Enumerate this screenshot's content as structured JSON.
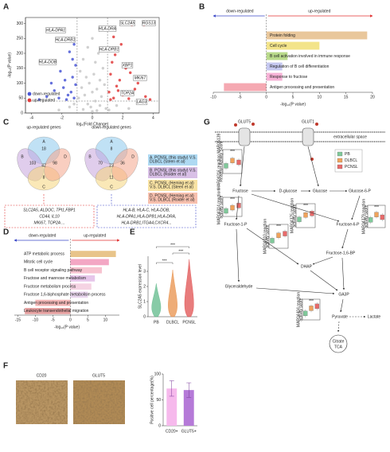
{
  "chart_data": [
    {
      "panel": "A",
      "type": "scatter",
      "x_label": "log₂(Fold Change)",
      "y_label": "-log₁₀(P value)",
      "xlim": [
        -4.4,
        4.4
      ],
      "xticks": [
        -4,
        -2,
        0,
        2,
        4
      ],
      "ylim": [
        0,
        320
      ],
      "yticks": [
        0,
        50,
        100,
        150,
        200,
        250,
        300
      ],
      "vlines": [
        -1,
        1
      ],
      "hline": 40,
      "legend": "lower left",
      "series": [
        {
          "color": "#c8c8c8",
          "x": [
            0,
            -0.3,
            0.4,
            -0.6,
            0.2,
            0.7,
            -0.8,
            0.1,
            -0.4,
            0.5,
            -0.2,
            0.8,
            -0.7,
            0.3,
            0,
            -0.5,
            0.6,
            -0.9,
            0.2,
            -0.3,
            0.5,
            -0.1,
            0.9,
            -0.6,
            0.3,
            -1.5,
            1.6,
            -2.2,
            2.4,
            1.1,
            -1.2,
            0
          ],
          "values": [
            250,
            220,
            200,
            180,
            170,
            150,
            140,
            130,
            120,
            110,
            100,
            95,
            85,
            80,
            70,
            60,
            55,
            50,
            40,
            30,
            25,
            20,
            15,
            12,
            8,
            20,
            25,
            10,
            15,
            10,
            30,
            5
          ]
        },
        {
          "name": "down-regulated",
          "color": "#4a57d6",
          "x": [
            -1.2,
            -1.5,
            -1.3,
            -2.1,
            -1.8,
            -1.1,
            -2.5,
            -1.4,
            -3.0,
            -1.6,
            -2.2,
            -1.2,
            -3.5,
            -1.9,
            -1.3,
            -2.7,
            -1.1,
            -1.7
          ],
          "values": [
            230,
            205,
            180,
            140,
            110,
            95,
            75,
            70,
            55,
            60,
            50,
            50,
            45,
            85,
            120,
            100,
            160,
            45
          ]
        },
        {
          "name": "up-regulated",
          "color": "#e03b3b",
          "x": [
            2.6,
            3.4,
            1.4,
            1.9,
            1.5,
            1.3,
            2.2,
            2.5,
            1.2,
            1.8,
            3.0,
            1.6,
            2.8,
            1.1,
            2.0,
            3.5,
            1.4,
            2.4,
            1.2,
            3.8,
            1.7
          ],
          "values": [
            295,
            295,
            255,
            230,
            195,
            170,
            150,
            135,
            130,
            110,
            100,
            90,
            80,
            70,
            60,
            55,
            50,
            48,
            45,
            45,
            75
          ]
        }
      ],
      "annotations": [
        "HLA-DPA1",
        "HLA-DRB1",
        "HLA-DRA",
        "HLA-DPB1",
        "HLA-DOB",
        "SLC2A5",
        "RGS13",
        "XBP1",
        "MKI67",
        "TOP2A",
        "LAG3"
      ]
    },
    {
      "panel": "B",
      "type": "bar",
      "orientation": "horizontal",
      "header_left": "down-regulated",
      "header_right": "up-regulated",
      "categories": [
        "Protein folding",
        "Cell cycle",
        "B cell activation involved in immune response",
        "Regulation of B cell differentiation",
        "Response to fructose",
        "Antigen processing and presentation"
      ],
      "values": [
        19,
        10,
        4,
        3,
        3,
        -8
      ],
      "colors": [
        "#e9c79b",
        "#f3e48a",
        "#b9da8b",
        "#c5c8f0",
        "#f6b2d6",
        "#f5a9b2"
      ],
      "xlim": [
        -10,
        20
      ],
      "xticks": [
        -10,
        -5,
        0,
        5,
        10,
        15,
        20
      ],
      "x_label": "-log₁₀(P value)"
    },
    {
      "panel": "D",
      "type": "bar",
      "orientation": "horizontal",
      "header_left": "down-regulated",
      "header_right": "up-regulated",
      "categories": [
        "ATP metabolic process",
        "Mitotic cell cycle",
        "B cell receptor signaling pathway",
        "Fructose and mannose metabolism",
        "Fructose metabolism process",
        "Fructose 1,6-biphosphate metabolism process",
        "Antigen processing and presentation",
        "Leukocyte transendothelial migration"
      ],
      "values": [
        13,
        11,
        9,
        7,
        6,
        5,
        -10,
        -13
      ],
      "colors": [
        "#e8c48a",
        "#f3a7c4",
        "#f7c3d0",
        "#e6c6ea",
        "#f5d3e3",
        "#ead7ef",
        "#f2b5b5",
        "#e5a0a0"
      ],
      "xlim": [
        -16,
        14
      ],
      "xticks": [
        -15,
        -10,
        -5,
        0,
        5,
        10
      ],
      "x_label": "-log₁₀(P value)"
    },
    {
      "panel": "E",
      "type": "violin",
      "categories": [
        "PB",
        "DLBCL",
        "PCNSL"
      ],
      "values": [
        2.2,
        3.1,
        3.8
      ],
      "colors": [
        "#5fb98a",
        "#e8904a",
        "#e05050"
      ],
      "ylim": [
        0,
        4
      ],
      "yticks": [
        0,
        1,
        2,
        3
      ],
      "y_label": "SLC2A5 expression level",
      "annotations": [
        "***",
        "***",
        "***"
      ]
    },
    {
      "type": "bar",
      "categories": [
        "CD20+",
        "GLUT5+"
      ],
      "values": [
        72,
        69
      ],
      "errors": [
        15,
        14
      ],
      "colors": [
        "#f6b9ec",
        "#b57ad8"
      ],
      "ylim": [
        0,
        100
      ],
      "yticks": [
        0,
        50,
        100
      ],
      "y_label": "Positive cell percentage(%)"
    },
    {
      "type": "box",
      "y_label": [
        "MAR04316 reaction MAR05139",
        "Reaction Activity Score"
      ],
      "values": [
        0.09,
        0.12,
        0.11
      ],
      "ylim": [
        0.06,
        0.16
      ],
      "annotation": "***"
    },
    {
      "type": "box",
      "y_label": [
        "MAR04314 reaction",
        "activity score"
      ],
      "values": [
        0.05,
        0.08,
        0.1
      ],
      "ylim": [
        0.02,
        0.14
      ],
      "annotation": "***"
    },
    {
      "type": "box",
      "y_label": [
        "MAR04310 reaction",
        "activity score"
      ],
      "values": [
        0.07,
        0.1,
        0.11
      ],
      "ylim": [
        0.04,
        0.14
      ],
      "annotation": "***"
    },
    {
      "type": "box",
      "y_label": [
        "MAR04375 reaction",
        "activity score"
      ],
      "values": [
        0.08,
        0.11,
        0.12
      ],
      "ylim": [
        0.04,
        0.16
      ],
      "annotation": "***"
    },
    {
      "type": "box",
      "y_label": [
        "MAR04379 reaction",
        "activity score"
      ],
      "values": [
        0.1,
        0.14,
        0.12
      ],
      "ylim": [
        0.06,
        0.18
      ],
      "annotation": "***"
    },
    {
      "type": "box",
      "y_label": [
        "MAR04404 reaction",
        "activity score"
      ],
      "values": [
        0.06,
        0.11,
        0.13
      ],
      "ylim": [
        0.02,
        0.16
      ],
      "annotation": "***"
    }
  ],
  "venn": {
    "panel": "C",
    "titles": [
      "up-regulated genes",
      "down-regulated genes"
    ],
    "sets": [
      {
        "label": "A",
        "color": "#8cc9ec"
      },
      {
        "label": "B",
        "color": "#c7a4dc"
      },
      {
        "label": "C",
        "color": "#f5d57c"
      },
      {
        "label": "D",
        "color": "#f4a58c"
      }
    ],
    "counts": [
      [
        18,
        103,
        42,
        98,
        8
      ],
      [
        8,
        70,
        23,
        36,
        11
      ]
    ],
    "legend": [
      [
        "A. PCNSL (this study) V.S.",
        "DLBCL (Steen et al)"
      ],
      [
        "B. PCNSL (this study) V.S.",
        "DLBCL (Roider et al)"
      ],
      [
        "C. PCNSL (Heming et al)",
        "V.S. DLBCL (Steen et al)"
      ],
      [
        "D. PCNSL (Heming et al)",
        "V.S. DLBCL (Roider et al)"
      ]
    ],
    "genes": [
      [
        "SLC2A5, ALDOC, TPI1,FBP1",
        "CD44, IL10",
        "MKI67, TOP2A ..."
      ],
      [
        "HLA-B, HLA-C, HLA-DOB,",
        "HLA-DPA1,HLA-DPB1,HLA-DRA,",
        "HLA-DRB1,ITGA4,CXCR4..."
      ]
    ]
  },
  "micrographs": {
    "panel": "F",
    "labels": [
      "CD20",
      "GLUT5"
    ]
  },
  "pathway": {
    "panel": "G",
    "transporters": [
      "GLUT5",
      "GLUT1"
    ],
    "compartment": "extracellular space",
    "nodes": [
      "Fructose",
      "D-glucose",
      "Glucose",
      "Glucose-6-P",
      "Fructose-6-P",
      "Fructose-1-P",
      "Fructose-1,6-BP",
      "DHAP",
      "Glyceraldehyde",
      "GA3P",
      "Pyruvate",
      "Lactate",
      "Citrate",
      "TCA"
    ],
    "legend": [
      {
        "name": "PB",
        "color": "#7fc99a"
      },
      {
        "name": "DLBCL",
        "color": "#f0a35c"
      },
      {
        "name": "PCNSL",
        "color": "#e86a6a"
      }
    ]
  }
}
